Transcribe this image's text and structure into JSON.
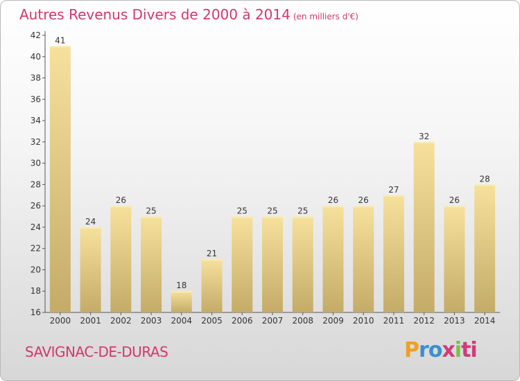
{
  "title": "Autres Revenus Divers de 2000 à 2014",
  "unit": "(en milliers d'€)",
  "town": "SAVIGNAC-DE-DURAS",
  "logo": "Proxiti",
  "colors": {
    "title": "#d4376a",
    "bar_light": "#f5df9a",
    "bar_dark": "#c9b16e"
  },
  "chart_data": {
    "type": "bar",
    "title": "Autres Revenus Divers de 2000 à 2014",
    "subtitle": "(en milliers d'€)",
    "categories": [
      "2000",
      "2001",
      "2002",
      "2003",
      "2004",
      "2005",
      "2006",
      "2007",
      "2008",
      "2009",
      "2010",
      "2011",
      "2012",
      "2013",
      "2014"
    ],
    "values": [
      41,
      24,
      26,
      25,
      18,
      21,
      25,
      25,
      25,
      26,
      26,
      27,
      32,
      26,
      28
    ],
    "ylim": [
      16,
      42
    ],
    "yticks": [
      16,
      18,
      20,
      22,
      24,
      26,
      28,
      30,
      32,
      34,
      36,
      38,
      40,
      42
    ],
    "grid": false,
    "legend": "none"
  }
}
